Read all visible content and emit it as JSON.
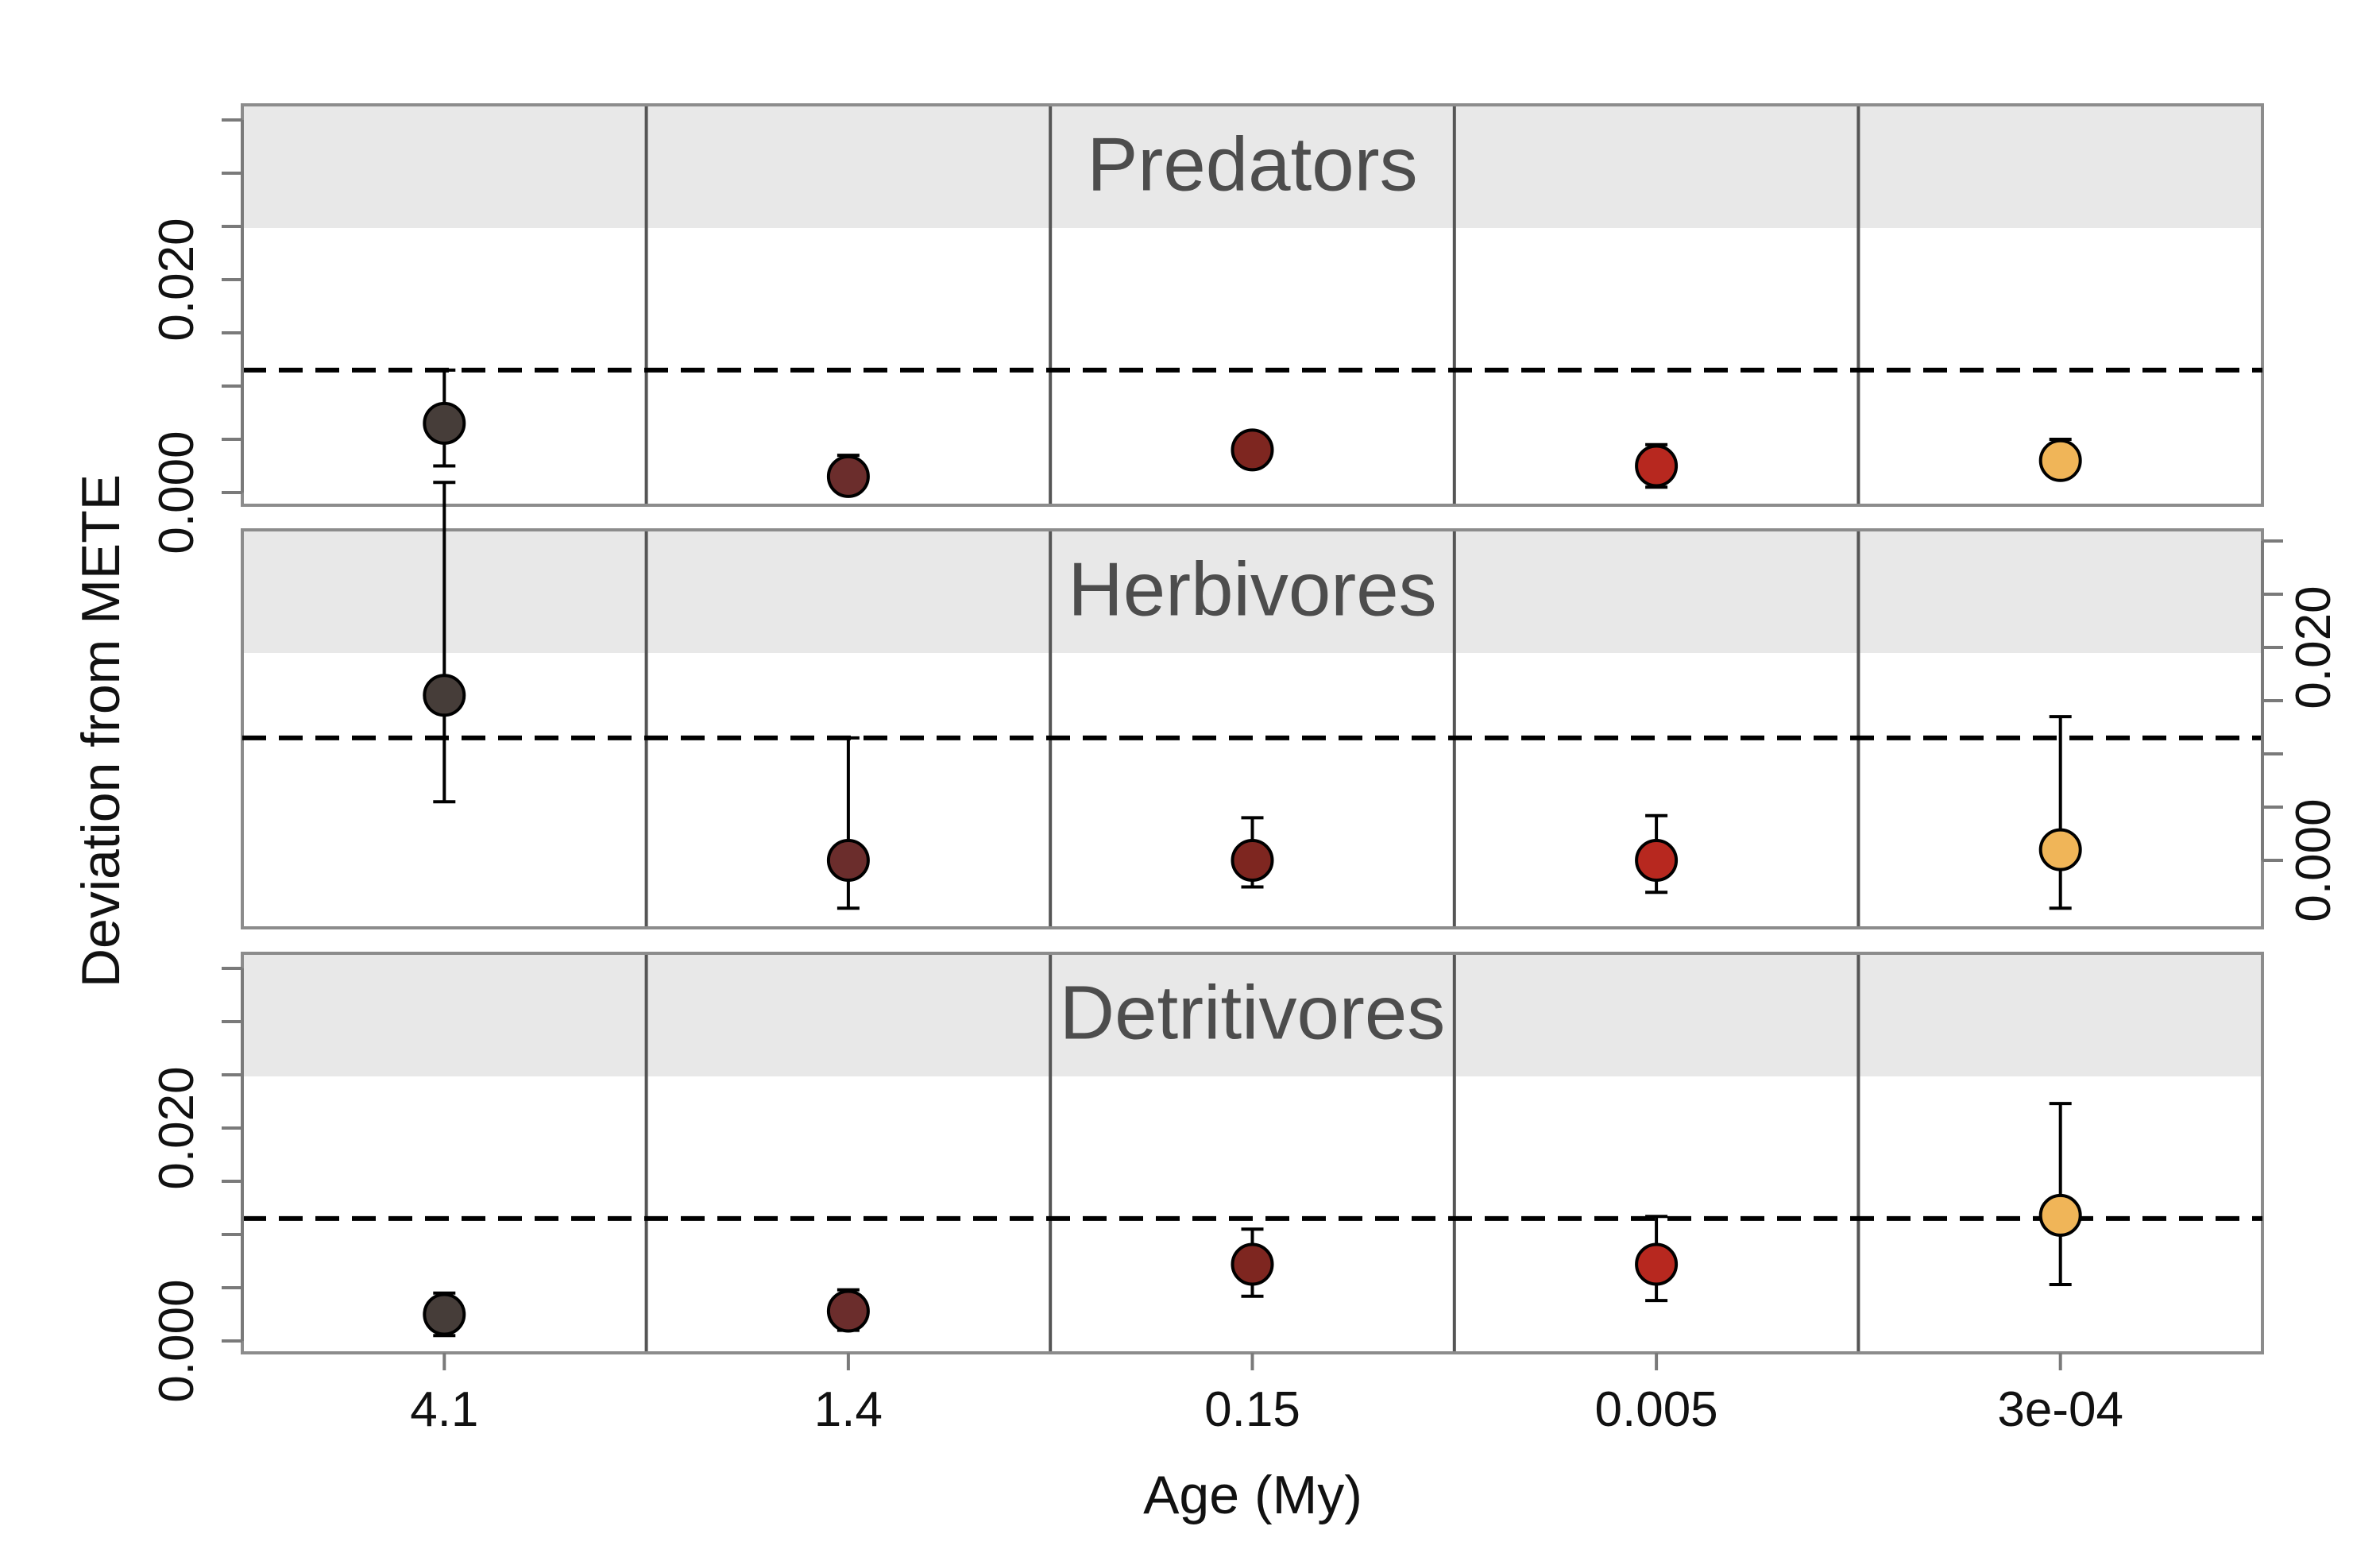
{
  "chart_data": {
    "type": "scatter",
    "title": "",
    "xlabel": "Age (My)",
    "ylabel": "Deviation from METE",
    "categories": [
      "4.1",
      "1.4",
      "0.15",
      "0.005",
      "3e-04"
    ],
    "y_ticks": [
      0,
      0.005,
      0.01,
      0.015,
      0.02,
      0.025,
      0.03,
      0.035
    ],
    "y_tick_labels": [
      "0.000",
      "0.020"
    ],
    "ylim": [
      -0.001,
      0.0365
    ],
    "reference_line": 0.0115,
    "grid": true,
    "legend": "none",
    "colors": [
      "#463d39",
      "#6b2d2c",
      "#7e2620",
      "#b7281f",
      "#f0b558"
    ],
    "panels": [
      {
        "name": "Predators",
        "axis_side": "left",
        "points": [
          {
            "x": "4.1",
            "y": 0.0065,
            "lo": 0.0025,
            "hi": 0.0115
          },
          {
            "x": "1.4",
            "y": 0.0015,
            "lo": 0.0,
            "hi": 0.0035
          },
          {
            "x": "0.15",
            "y": 0.004,
            "lo": 0.0025,
            "hi": 0.0055
          },
          {
            "x": "0.005",
            "y": 0.0025,
            "lo": 0.0005,
            "hi": 0.0045
          },
          {
            "x": "3e-04",
            "y": 0.003,
            "lo": 0.0015,
            "hi": 0.005
          }
        ]
      },
      {
        "name": "Herbivores",
        "axis_side": "right",
        "points": [
          {
            "x": "4.1",
            "y": 0.0155,
            "lo": 0.0055,
            "hi": 0.0355
          },
          {
            "x": "1.4",
            "y": 0.0,
            "lo": -0.0045,
            "hi": 0.0115
          },
          {
            "x": "0.15",
            "y": 0.0,
            "lo": -0.0025,
            "hi": 0.004
          },
          {
            "x": "0.005",
            "y": 0.0,
            "lo": -0.003,
            "hi": 0.0042
          },
          {
            "x": "3e-04",
            "y": 0.001,
            "lo": -0.0045,
            "hi": 0.0135
          }
        ]
      },
      {
        "name": "Detritivores",
        "axis_side": "left",
        "points": [
          {
            "x": "4.1",
            "y": 0.0025,
            "lo": 0.0005,
            "hi": 0.0045
          },
          {
            "x": "1.4",
            "y": 0.0028,
            "lo": 0.001,
            "hi": 0.0048
          },
          {
            "x": "0.15",
            "y": 0.0072,
            "lo": 0.0042,
            "hi": 0.0105
          },
          {
            "x": "0.005",
            "y": 0.0072,
            "lo": 0.0038,
            "hi": 0.0117
          },
          {
            "x": "3e-04",
            "y": 0.0118,
            "lo": 0.0053,
            "hi": 0.0223
          }
        ]
      }
    ]
  }
}
